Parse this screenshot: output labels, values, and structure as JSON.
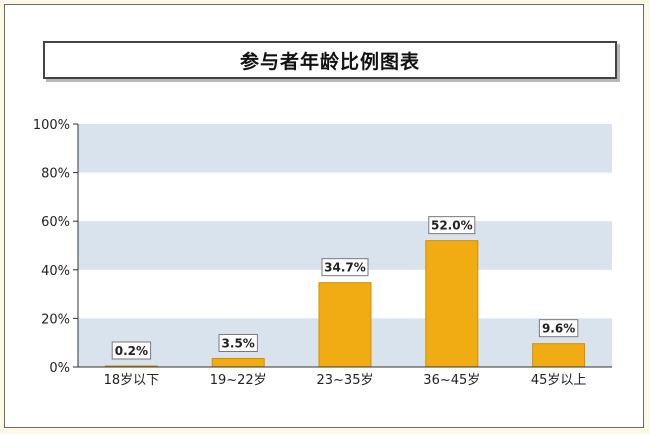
{
  "chart_data": {
    "type": "bar",
    "title": "参与者年龄比例图表",
    "categories": [
      "18岁以下",
      "19~22岁",
      "23~35岁",
      "36~45岁",
      "45岁以上"
    ],
    "values": [
      0.2,
      3.5,
      34.7,
      52.0,
      9.6
    ],
    "data_labels": [
      "0.2%",
      "3.5%",
      "34.7%",
      "52.0%",
      "9.6%"
    ],
    "ylim": [
      0,
      100
    ],
    "yticks": [
      0,
      20,
      40,
      60,
      80,
      100
    ],
    "ytick_labels": [
      "0%",
      "20%",
      "40%",
      "60%",
      "80%",
      "100%"
    ],
    "xlabel": "",
    "ylabel": "",
    "grid": "alternating-bands",
    "colors": {
      "bar": "#f0ac12",
      "bar_stroke": "#d18f00",
      "band": "#d9e3ee",
      "axis": "#333333"
    }
  }
}
